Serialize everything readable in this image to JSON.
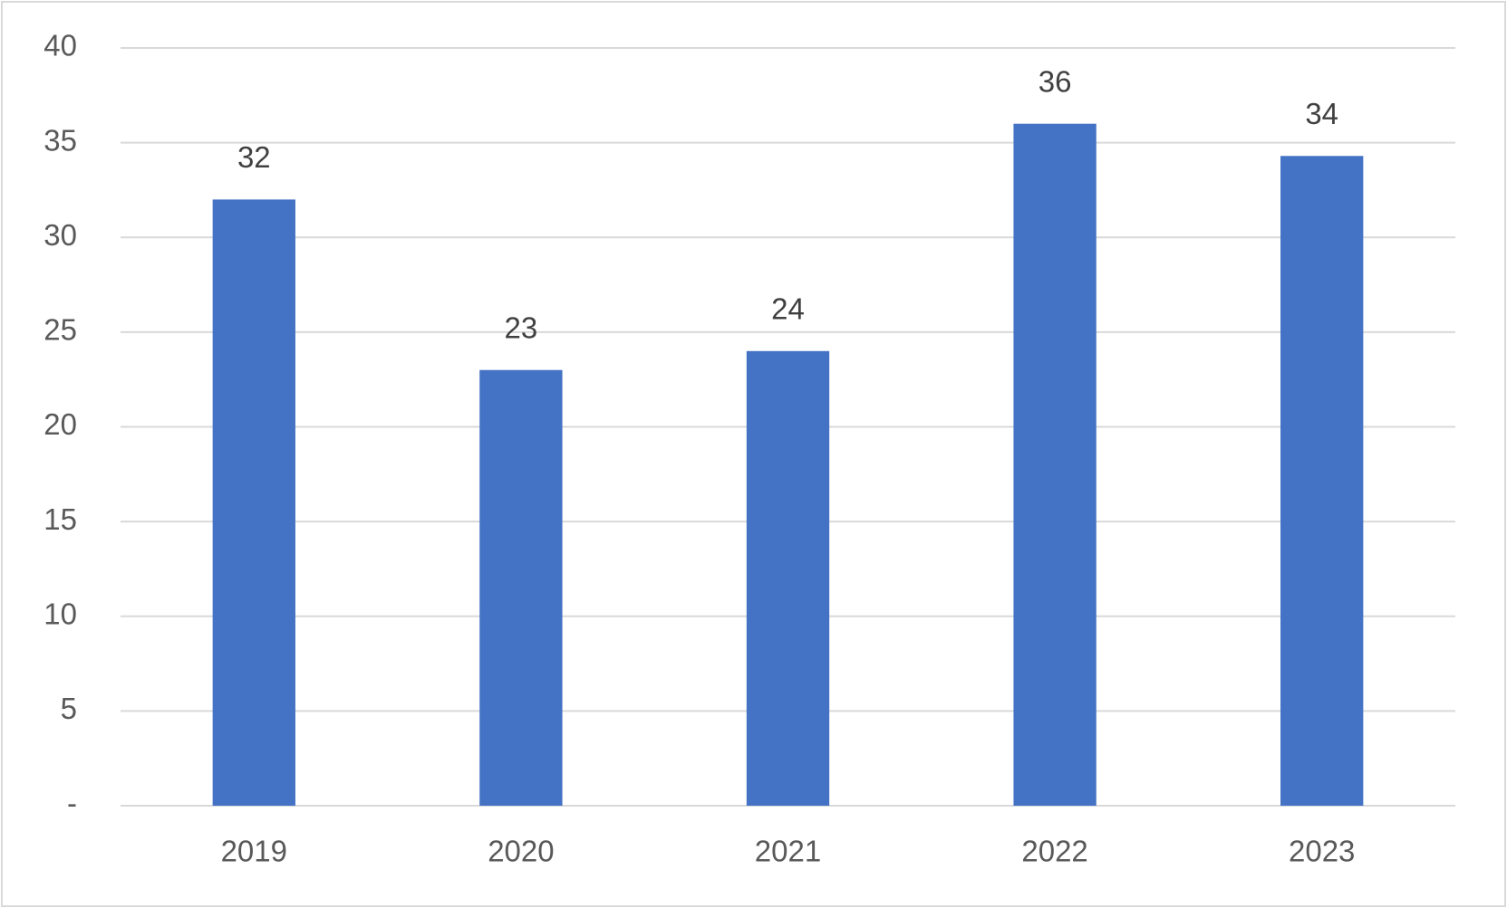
{
  "chart_data": {
    "type": "bar",
    "categories": [
      "2019",
      "2020",
      "2021",
      "2022",
      "2023"
    ],
    "values": [
      32,
      23,
      24,
      36,
      34.3
    ],
    "value_labels": [
      "32",
      "23",
      "24",
      "36",
      "34"
    ],
    "color": "#4472c4",
    "ylim": [
      0,
      40
    ],
    "yticks": [
      {
        "value": 0,
        "label": "-"
      },
      5,
      10,
      15,
      20,
      25,
      30,
      35,
      40
    ],
    "grid": true
  }
}
